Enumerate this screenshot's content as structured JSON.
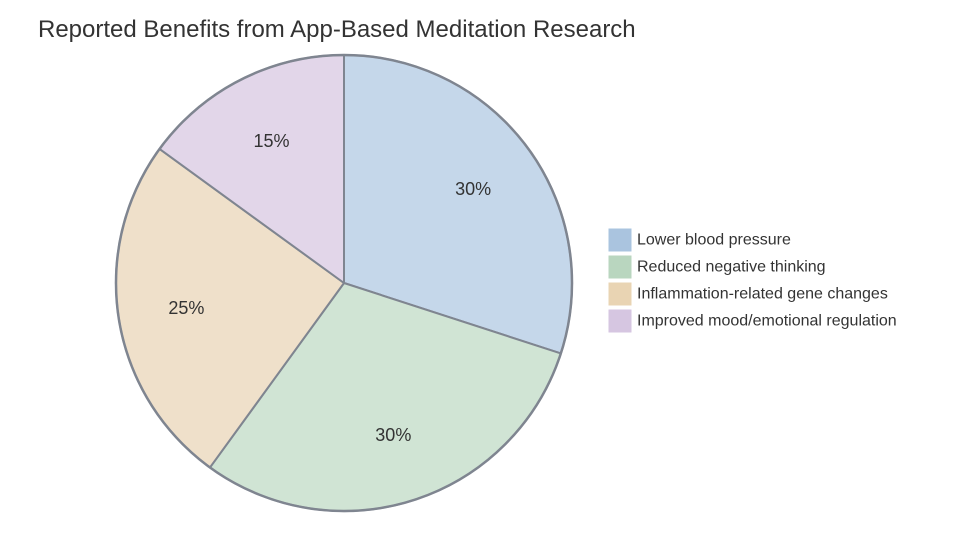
{
  "chart_data": {
    "type": "pie",
    "title": "Reported Benefits from App-Based Meditation Research",
    "legend_position": "right",
    "slices": [
      {
        "label": "Lower blood pressure",
        "value": 30,
        "display": "30%",
        "color": "#c5d7ea",
        "swatch": "#aac4df"
      },
      {
        "label": "Reduced negative thinking",
        "value": 30,
        "display": "30%",
        "color": "#d0e4d4",
        "swatch": "#b9d6bf"
      },
      {
        "label": "Inflammation-related gene changes",
        "value": 25,
        "display": "25%",
        "color": "#efe0ca",
        "swatch": "#e9d4b3"
      },
      {
        "label": "Improved mood/emotional regulation",
        "value": 15,
        "display": "15%",
        "color": "#e2d6e9",
        "swatch": "#d6c6e1"
      }
    ]
  }
}
